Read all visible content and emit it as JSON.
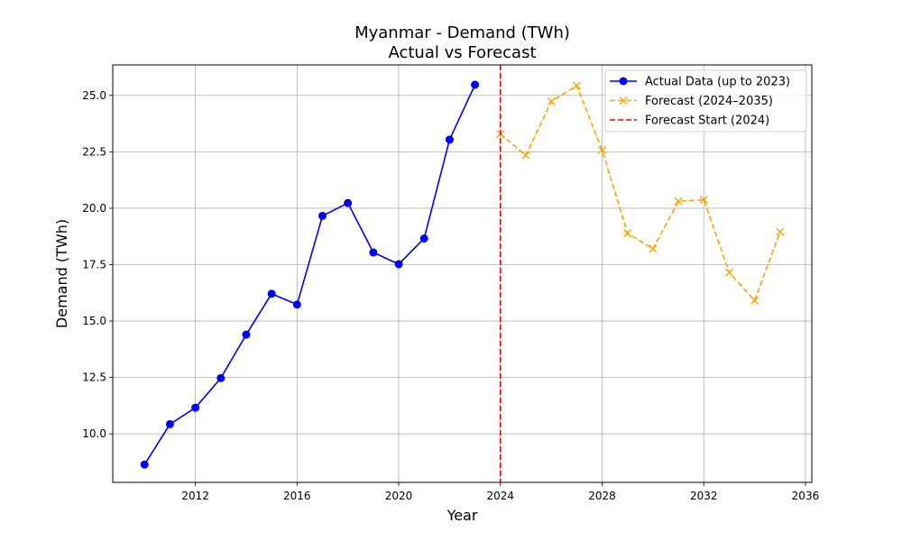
{
  "chart_data": {
    "type": "line",
    "title": "Myanmar - Demand (TWh)",
    "subtitle": "Actual vs Forecast",
    "xlabel": "Year",
    "ylabel": "Demand (TWh)",
    "xlim": [
      2008.75,
      2036.25
    ],
    "ylim": [
      7.85,
      26.35
    ],
    "xticks": [
      2012,
      2016,
      2020,
      2024,
      2028,
      2032,
      2036
    ],
    "yticks": [
      10.0,
      12.5,
      15.0,
      17.5,
      20.0,
      22.5,
      25.0
    ],
    "grid": true,
    "legend_position": "top-right",
    "series": [
      {
        "name": "Actual Data (up to 2023)",
        "color": "#0000ff",
        "style": "solid",
        "marker": "circle",
        "x": [
          2010,
          2011,
          2012,
          2013,
          2014,
          2015,
          2016,
          2017,
          2018,
          2019,
          2020,
          2021,
          2022,
          2023
        ],
        "y": [
          8.64,
          10.43,
          11.16,
          12.47,
          14.4,
          16.21,
          15.73,
          19.66,
          20.23,
          18.04,
          17.52,
          18.66,
          23.04,
          25.47
        ]
      },
      {
        "name": "Forecast (2024–2035)",
        "color": "#ffa500",
        "style": "dashed",
        "marker": "x",
        "x": [
          2024,
          2025,
          2026,
          2027,
          2028,
          2029,
          2030,
          2031,
          2032,
          2033,
          2034,
          2035
        ],
        "y": [
          23.29,
          22.34,
          24.73,
          25.43,
          22.58,
          18.89,
          18.2,
          20.31,
          20.38,
          17.15,
          15.91,
          18.95
        ]
      }
    ],
    "vline": {
      "name": "Forecast Start (2024)",
      "x": 2024,
      "color": "#ff0000",
      "style": "dashed"
    }
  }
}
